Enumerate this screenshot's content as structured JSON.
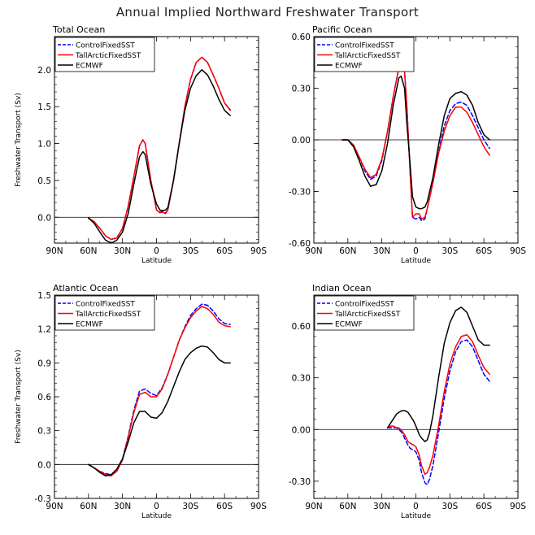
{
  "title": "Annual Implied Northward Freshwater Transport",
  "chart_data": [
    {
      "type": "line",
      "title": "Total Ocean",
      "xlabel": "Latitude",
      "ylabel": "Freshwater Transport (Sv)",
      "xlim": [
        90,
        -90
      ],
      "xticks": [
        90,
        60,
        30,
        0,
        -30,
        -60,
        -90
      ],
      "xtick_labels": [
        "90N",
        "60N",
        "30N",
        "0",
        "30S",
        "60S",
        "90S"
      ],
      "ylim": [
        -0.35,
        2.45
      ],
      "yticks": [
        0.0,
        0.5,
        1.0,
        1.5,
        2.0
      ],
      "ytick_labels": [
        "0.0",
        "0.5",
        "1.0",
        "1.5",
        "2.0"
      ],
      "legend": "top-left",
      "series": [
        {
          "name": "ControlFixedSST",
          "color": "#0000ff",
          "dash": "dashed",
          "x": [
            60,
            55,
            50,
            45,
            40,
            35,
            30,
            25,
            20,
            15,
            12,
            10,
            5,
            0,
            -3,
            -5,
            -8,
            -10,
            -15,
            -20,
            -25,
            -30,
            -35,
            -40,
            -45,
            -50,
            -55,
            -60,
            -65
          ],
          "y": [
            -0.01,
            -0.06,
            -0.15,
            -0.25,
            -0.3,
            -0.28,
            -0.15,
            0.15,
            0.55,
            0.97,
            1.05,
            1.0,
            0.5,
            0.1,
            0.07,
            0.08,
            0.06,
            0.1,
            0.5,
            1.0,
            1.5,
            1.87,
            2.1,
            2.17,
            2.1,
            1.93,
            1.75,
            1.55,
            1.46
          ]
        },
        {
          "name": "TallArcticFixedSST",
          "color": "#ff0000",
          "dash": "solid",
          "x": [
            60,
            55,
            50,
            45,
            40,
            35,
            30,
            25,
            20,
            15,
            12,
            10,
            5,
            0,
            -3,
            -5,
            -8,
            -10,
            -15,
            -20,
            -25,
            -30,
            -35,
            -40,
            -45,
            -50,
            -55,
            -60,
            -65
          ],
          "y": [
            -0.01,
            -0.06,
            -0.15,
            -0.25,
            -0.3,
            -0.28,
            -0.15,
            0.15,
            0.55,
            0.97,
            1.05,
            1.0,
            0.5,
            0.1,
            0.06,
            0.07,
            0.05,
            0.1,
            0.5,
            1.0,
            1.5,
            1.87,
            2.1,
            2.17,
            2.1,
            1.93,
            1.75,
            1.55,
            1.45
          ]
        },
        {
          "name": "ECMWF",
          "color": "#000000",
          "dash": "solid",
          "x": [
            60,
            55,
            50,
            45,
            40,
            35,
            30,
            25,
            20,
            15,
            12,
            10,
            5,
            0,
            -3,
            -5,
            -8,
            -10,
            -15,
            -20,
            -25,
            -30,
            -35,
            -40,
            -45,
            -50,
            -55,
            -60,
            -65
          ],
          "y": [
            -0.01,
            -0.08,
            -0.2,
            -0.31,
            -0.35,
            -0.31,
            -0.2,
            0.05,
            0.45,
            0.82,
            0.89,
            0.85,
            0.45,
            0.18,
            0.1,
            0.09,
            0.1,
            0.13,
            0.5,
            1.0,
            1.45,
            1.75,
            1.92,
            2.0,
            1.93,
            1.78,
            1.6,
            1.45,
            1.38
          ]
        }
      ]
    },
    {
      "type": "line",
      "title": "Pacific Ocean",
      "xlabel": "Latitude",
      "ylabel": "",
      "xlim": [
        90,
        -90
      ],
      "xticks": [
        90,
        60,
        30,
        0,
        -30,
        -60,
        -90
      ],
      "xtick_labels": [
        "90N",
        "60N",
        "30N",
        "0",
        "30S",
        "60S",
        "90S"
      ],
      "ylim": [
        -0.6,
        0.6
      ],
      "yticks": [
        -0.6,
        -0.3,
        0.0,
        0.3,
        0.6
      ],
      "ytick_labels": [
        "-0.60",
        "-0.30",
        "0.00",
        "0.30",
        "0.60"
      ],
      "legend": "top-left",
      "series": [
        {
          "name": "ControlFixedSST",
          "color": "#0000ff",
          "dash": "dashed",
          "x": [
            65,
            60,
            55,
            50,
            45,
            40,
            35,
            30,
            25,
            20,
            15,
            13,
            10,
            8,
            5,
            3,
            0,
            -3,
            -5,
            -8,
            -10,
            -15,
            -20,
            -25,
            -30,
            -35,
            -40,
            -45,
            -50,
            -55,
            -60,
            -65
          ],
          "y": [
            0.0,
            0.0,
            -0.03,
            -0.1,
            -0.18,
            -0.23,
            -0.21,
            -0.12,
            0.05,
            0.25,
            0.42,
            0.45,
            0.4,
            0.2,
            -0.2,
            -0.45,
            -0.46,
            -0.45,
            -0.47,
            -0.46,
            -0.4,
            -0.25,
            -0.07,
            0.08,
            0.17,
            0.21,
            0.22,
            0.2,
            0.14,
            0.07,
            0.0,
            -0.05
          ]
        },
        {
          "name": "TallArcticFixedSST",
          "color": "#ff0000",
          "dash": "solid",
          "x": [
            65,
            60,
            55,
            50,
            45,
            40,
            35,
            30,
            25,
            20,
            15,
            13,
            10,
            8,
            5,
            3,
            0,
            -3,
            -5,
            -8,
            -10,
            -15,
            -20,
            -25,
            -30,
            -35,
            -40,
            -45,
            -50,
            -55,
            -60,
            -65
          ],
          "y": [
            0.0,
            0.0,
            -0.03,
            -0.1,
            -0.17,
            -0.22,
            -0.2,
            -0.11,
            0.05,
            0.25,
            0.42,
            0.45,
            0.4,
            0.2,
            -0.2,
            -0.45,
            -0.43,
            -0.43,
            -0.46,
            -0.45,
            -0.4,
            -0.25,
            -0.08,
            0.05,
            0.14,
            0.19,
            0.19,
            0.16,
            0.1,
            0.03,
            -0.04,
            -0.09
          ]
        },
        {
          "name": "ECMWF",
          "color": "#000000",
          "dash": "solid",
          "x": [
            65,
            60,
            55,
            50,
            45,
            40,
            35,
            30,
            25,
            20,
            15,
            13,
            10,
            8,
            5,
            3,
            0,
            -3,
            -5,
            -8,
            -10,
            -15,
            -20,
            -25,
            -30,
            -35,
            -40,
            -45,
            -50,
            -55,
            -60,
            -65
          ],
          "y": [
            0.0,
            0.0,
            -0.04,
            -0.12,
            -0.21,
            -0.27,
            -0.26,
            -0.18,
            -0.02,
            0.2,
            0.36,
            0.37,
            0.3,
            0.1,
            -0.15,
            -0.33,
            -0.39,
            -0.4,
            -0.4,
            -0.39,
            -0.36,
            -0.22,
            -0.03,
            0.14,
            0.24,
            0.27,
            0.28,
            0.26,
            0.2,
            0.1,
            0.03,
            0.0
          ]
        }
      ]
    },
    {
      "type": "line",
      "title": "Atlantic Ocean",
      "xlabel": "Latitude",
      "ylabel": "Freshwater Transport (Sv)",
      "xlim": [
        90,
        -90
      ],
      "xticks": [
        90,
        60,
        30,
        0,
        -30,
        -60,
        -90
      ],
      "xtick_labels": [
        "90N",
        "60N",
        "30N",
        "0",
        "30S",
        "60S",
        "90S"
      ],
      "ylim": [
        -0.3,
        1.5
      ],
      "yticks": [
        -0.3,
        0.0,
        0.3,
        0.6,
        0.9,
        1.2,
        1.5
      ],
      "ytick_labels": [
        "-0.3",
        "0.0",
        "0.3",
        "0.6",
        "0.9",
        "1.2",
        "1.5"
      ],
      "legend": "top-left",
      "series": [
        {
          "name": "ControlFixedSST",
          "color": "#0000ff",
          "dash": "dashed",
          "x": [
            60,
            55,
            50,
            45,
            40,
            35,
            30,
            25,
            20,
            15,
            10,
            5,
            0,
            -5,
            -10,
            -15,
            -20,
            -25,
            -30,
            -35,
            -40,
            -45,
            -50,
            -55,
            -60,
            -65
          ],
          "y": [
            0.0,
            -0.03,
            -0.06,
            -0.08,
            -0.09,
            -0.05,
            0.05,
            0.25,
            0.48,
            0.65,
            0.67,
            0.63,
            0.61,
            0.68,
            0.8,
            0.95,
            1.1,
            1.22,
            1.32,
            1.38,
            1.42,
            1.41,
            1.36,
            1.29,
            1.25,
            1.24
          ]
        },
        {
          "name": "TallArcticFixedSST",
          "color": "#ff0000",
          "dash": "solid",
          "x": [
            60,
            55,
            50,
            45,
            40,
            35,
            30,
            25,
            20,
            15,
            10,
            5,
            0,
            -5,
            -10,
            -15,
            -20,
            -25,
            -30,
            -35,
            -40,
            -45,
            -50,
            -55,
            -60,
            -65
          ],
          "y": [
            0.0,
            -0.03,
            -0.06,
            -0.09,
            -0.1,
            -0.06,
            0.04,
            0.24,
            0.46,
            0.62,
            0.64,
            0.6,
            0.6,
            0.67,
            0.8,
            0.95,
            1.1,
            1.21,
            1.3,
            1.36,
            1.4,
            1.38,
            1.33,
            1.26,
            1.23,
            1.22
          ]
        },
        {
          "name": "ECMWF",
          "color": "#000000",
          "dash": "solid",
          "x": [
            60,
            55,
            50,
            45,
            40,
            35,
            30,
            25,
            20,
            15,
            10,
            5,
            0,
            -5,
            -10,
            -15,
            -20,
            -25,
            -30,
            -35,
            -40,
            -45,
            -50,
            -55,
            -60,
            -65
          ],
          "y": [
            0.0,
            -0.03,
            -0.07,
            -0.1,
            -0.09,
            -0.04,
            0.05,
            0.2,
            0.37,
            0.47,
            0.47,
            0.42,
            0.41,
            0.46,
            0.56,
            0.69,
            0.82,
            0.93,
            0.99,
            1.03,
            1.05,
            1.04,
            0.99,
            0.93,
            0.9,
            0.9
          ]
        }
      ]
    },
    {
      "type": "line",
      "title": "Indian Ocean",
      "xlabel": "Latitude",
      "ylabel": "",
      "xlim": [
        90,
        -90
      ],
      "xticks": [
        90,
        60,
        30,
        0,
        -30,
        -60,
        -90
      ],
      "xtick_labels": [
        "90N",
        "60N",
        "30N",
        "0",
        "30S",
        "60S",
        "90S"
      ],
      "ylim": [
        -0.4,
        0.78
      ],
      "yticks": [
        -0.3,
        0.0,
        0.3,
        0.6
      ],
      "ytick_labels": [
        "-0.30",
        "0.00",
        "0.30",
        "0.60"
      ],
      "legend": "top-left",
      "series": [
        {
          "name": "ControlFixedSST",
          "color": "#0000ff",
          "dash": "dashed",
          "x": [
            25,
            22,
            20,
            17,
            15,
            12,
            10,
            7,
            5,
            2,
            0,
            -3,
            -5,
            -8,
            -10,
            -12,
            -15,
            -20,
            -25,
            -30,
            -35,
            -40,
            -45,
            -50,
            -55,
            -60,
            -65
          ],
          "y": [
            0.01,
            0.01,
            0.01,
            0.01,
            0.0,
            -0.02,
            -0.05,
            -0.09,
            -0.11,
            -0.12,
            -0.13,
            -0.18,
            -0.25,
            -0.31,
            -0.32,
            -0.29,
            -0.21,
            -0.02,
            0.18,
            0.34,
            0.45,
            0.51,
            0.52,
            0.48,
            0.4,
            0.32,
            0.28
          ]
        },
        {
          "name": "TallArcticFixedSST",
          "color": "#ff0000",
          "dash": "solid",
          "x": [
            25,
            22,
            20,
            17,
            15,
            12,
            10,
            7,
            5,
            2,
            0,
            -3,
            -5,
            -8,
            -10,
            -12,
            -15,
            -20,
            -25,
            -30,
            -35,
            -40,
            -45,
            -50,
            -55,
            -60,
            -65
          ],
          "y": [
            0.01,
            0.02,
            0.02,
            0.01,
            0.01,
            -0.01,
            -0.03,
            -0.07,
            -0.08,
            -0.09,
            -0.1,
            -0.15,
            -0.21,
            -0.26,
            -0.25,
            -0.22,
            -0.15,
            0.02,
            0.22,
            0.38,
            0.48,
            0.54,
            0.55,
            0.51,
            0.43,
            0.36,
            0.32
          ]
        },
        {
          "name": "ECMWF",
          "color": "#000000",
          "dash": "solid",
          "x": [
            25,
            22,
            20,
            17,
            15,
            12,
            10,
            7,
            5,
            2,
            0,
            -3,
            -5,
            -8,
            -10,
            -12,
            -15,
            -20,
            -25,
            -30,
            -35,
            -40,
            -45,
            -50,
            -55,
            -60,
            -65
          ],
          "y": [
            0.01,
            0.04,
            0.06,
            0.09,
            0.1,
            0.11,
            0.11,
            0.1,
            0.08,
            0.05,
            0.02,
            -0.03,
            -0.05,
            -0.07,
            -0.06,
            -0.02,
            0.08,
            0.3,
            0.5,
            0.62,
            0.69,
            0.71,
            0.68,
            0.6,
            0.52,
            0.49,
            0.49
          ]
        }
      ]
    }
  ]
}
